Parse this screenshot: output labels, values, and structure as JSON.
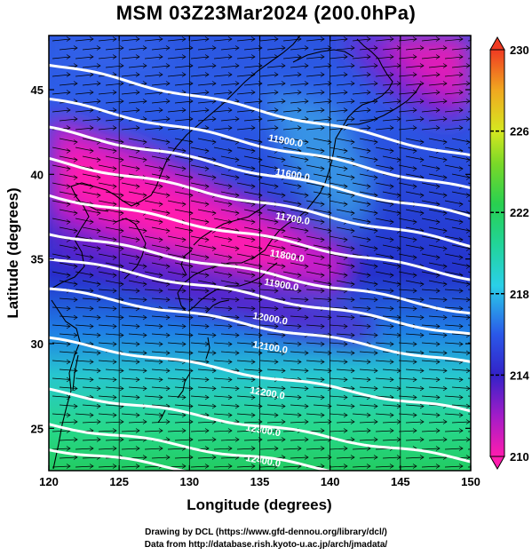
{
  "title": "MSM 03Z23Mar2024 (200.0hPa)",
  "x_label": "Longitude (degrees)",
  "y_label": "Latitude  (degrees)",
  "x_ticks": [
    "120",
    "125",
    "130",
    "135",
    "140",
    "145",
    "150"
  ],
  "y_ticks": [
    "25",
    "30",
    "35",
    "40",
    "45"
  ],
  "colorbar_ticks": [
    "210",
    "214",
    "218",
    "222",
    "226",
    "230"
  ],
  "footer_line1": "Drawing by DCL (https://www.gfd-dennou.org/library/dcl/)",
  "footer_line2": "Data from http://database.rish.kyoto-u.ac.jp/arch/jmadata/",
  "contours": [
    {
      "label": "11900.0",
      "lon": 136.8,
      "lat": 41.8
    },
    {
      "label": "11600.0",
      "lon": 137.3,
      "lat": 39.8
    },
    {
      "label": "11700.0",
      "lon": 137.3,
      "lat": 37.2
    },
    {
      "label": "11800.0",
      "lon": 136.9,
      "lat": 35.0
    },
    {
      "label": "11900.0",
      "lon": 136.5,
      "lat": 33.3
    },
    {
      "label": "12000.0",
      "lon": 135.7,
      "lat": 31.3
    },
    {
      "label": "12100.0",
      "lon": 135.7,
      "lat": 29.6
    },
    {
      "label": "12200.0",
      "lon": 135.5,
      "lat": 26.9
    },
    {
      "label": "12300.0",
      "lon": 135.2,
      "lat": 24.7
    },
    {
      "label": "12400.0",
      "lon": 135.2,
      "lat": 22.9
    }
  ],
  "colors": {
    "pink": "#ff1cae",
    "magenta": "#cc18c8",
    "purple": "#7a1fd6",
    "blue": "#2840e0",
    "lightblue": "#3ea0f0",
    "cyan": "#25d6c8",
    "green": "#22d06a"
  }
}
